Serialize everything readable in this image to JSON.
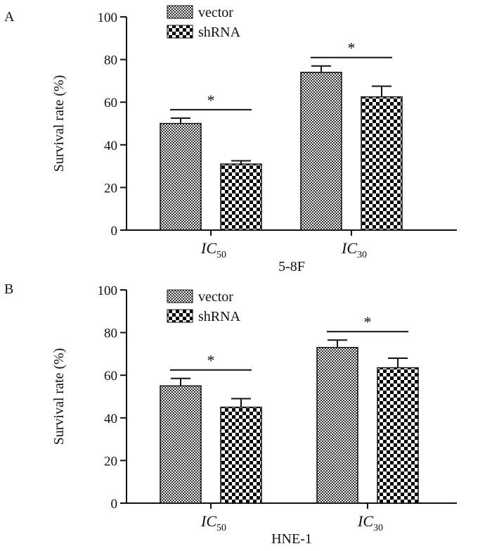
{
  "chart_data": [
    {
      "type": "bar",
      "panel_label": "A",
      "title": "",
      "xlabel": "5-8F",
      "ylabel": "Survival rate (%)",
      "ylim": [
        0,
        100
      ],
      "yticks": [
        "0",
        "20",
        "40",
        "60",
        "80",
        "100"
      ],
      "categories": [
        {
          "main": "IC",
          "sub": "50"
        },
        {
          "main": "IC",
          "sub": "30"
        }
      ],
      "series": [
        {
          "name": "vector",
          "values": [
            50,
            74
          ],
          "errors": [
            2.5,
            3
          ]
        },
        {
          "name": "shRNA",
          "values": [
            31,
            62.5
          ],
          "errors": [
            1.5,
            5
          ]
        }
      ],
      "significance": [
        "*",
        "*"
      ],
      "legend": "top-left"
    },
    {
      "type": "bar",
      "panel_label": "B",
      "title": "",
      "xlabel": "HNE-1",
      "ylabel": "Survival rate (%)",
      "ylim": [
        0,
        100
      ],
      "yticks": [
        "0",
        "20",
        "40",
        "60",
        "80",
        "100"
      ],
      "categories": [
        {
          "main": "IC",
          "sub": "50"
        },
        {
          "main": "IC",
          "sub": "30"
        }
      ],
      "series": [
        {
          "name": "vector",
          "values": [
            55,
            73
          ],
          "errors": [
            3.5,
            3.5
          ]
        },
        {
          "name": "shRNA",
          "values": [
            45,
            63.5
          ],
          "errors": [
            4,
            4.5
          ]
        }
      ],
      "significance": [
        "*",
        "*"
      ],
      "legend": "top-left"
    }
  ]
}
